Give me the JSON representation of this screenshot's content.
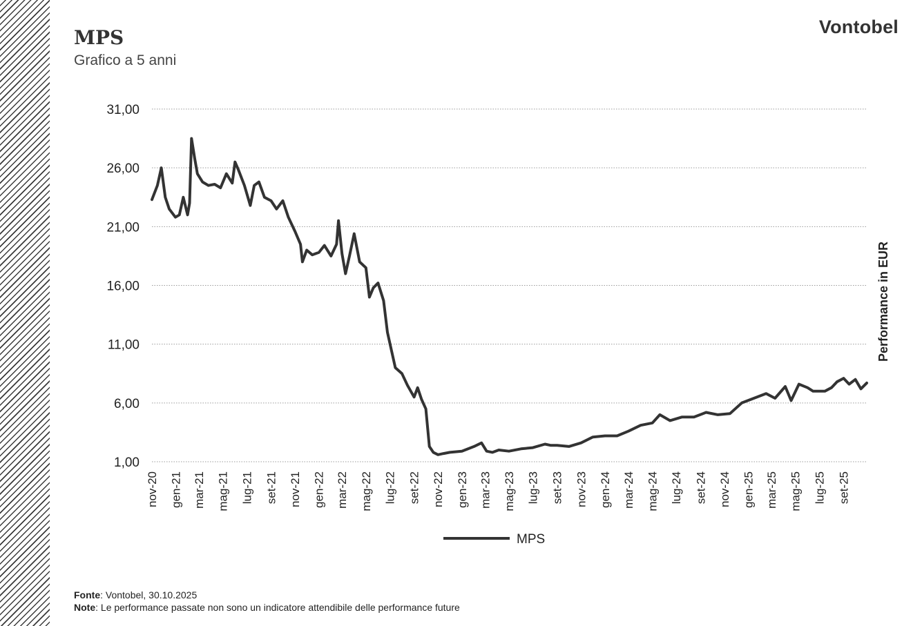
{
  "header": {
    "title": "MPS",
    "subtitle": "Grafico a 5 anni",
    "brand": "Vontobel"
  },
  "footer": {
    "source_label": "Fonte",
    "source_text": ": Vontobel, 30.10.2025",
    "note_label": "Note",
    "note_text": ": Le performance passate non sono un indicatore attendibile delle performance future"
  },
  "colors": {
    "line": "#333333",
    "grid": "#9a9a9a",
    "text": "#222222"
  },
  "chart_data": {
    "type": "line",
    "title": "MPS",
    "subtitle": "Grafico a 5 anni",
    "ylabel": "Performance in EUR",
    "xlabel": "",
    "ylim": [
      1,
      31
    ],
    "yticks": [
      "31,00",
      "26,00",
      "21,00",
      "16,00",
      "11,00",
      "6,00",
      "1,00"
    ],
    "ytick_values": [
      31,
      26,
      21,
      16,
      11,
      6,
      1
    ],
    "xticks": [
      "nov-20",
      "gen-21",
      "mar-21",
      "mag-21",
      "lug-21",
      "set-21",
      "nov-21",
      "gen-22",
      "mar-22",
      "mag-22",
      "lug-22",
      "set-22",
      "nov-22",
      "gen-23",
      "mar-23",
      "mag-23",
      "lug-23",
      "set-23",
      "nov-23",
      "gen-24",
      "mar-24",
      "mag-24",
      "lug-24",
      "set-24",
      "nov-24",
      "gen-25",
      "mar-25",
      "mag-25",
      "lug-25",
      "set-25"
    ],
    "grid": true,
    "legend": "bottom-center",
    "series": [
      {
        "name": "MPS",
        "x": [
          "2020-11-01",
          "2020-11-15",
          "2020-11-25",
          "2020-12-05",
          "2020-12-15",
          "2020-12-31",
          "2021-01-10",
          "2021-01-20",
          "2021-01-31",
          "2021-02-05",
          "2021-02-10",
          "2021-02-18",
          "2021-02-25",
          "2021-03-10",
          "2021-03-25",
          "2021-04-10",
          "2021-04-25",
          "2021-05-10",
          "2021-05-25",
          "2021-06-01",
          "2021-06-10",
          "2021-06-25",
          "2021-07-10",
          "2021-07-20",
          "2021-08-01",
          "2021-08-15",
          "2021-09-01",
          "2021-09-15",
          "2021-10-01",
          "2021-10-15",
          "2021-11-01",
          "2021-11-15",
          "2021-11-20",
          "2021-12-01",
          "2021-12-15",
          "2022-01-01",
          "2022-01-15",
          "2022-02-01",
          "2022-02-15",
          "2022-02-20",
          "2022-03-01",
          "2022-03-10",
          "2022-03-20",
          "2022-04-01",
          "2022-04-15",
          "2022-05-01",
          "2022-05-10",
          "2022-05-20",
          "2022-06-01",
          "2022-06-15",
          "2022-06-25",
          "2022-07-05",
          "2022-07-15",
          "2022-08-01",
          "2022-08-15",
          "2022-09-01",
          "2022-09-10",
          "2022-09-20",
          "2022-10-01",
          "2022-10-10",
          "2022-10-20",
          "2022-11-01",
          "2022-11-15",
          "2022-12-01",
          "2023-01-01",
          "2023-02-01",
          "2023-02-20",
          "2023-03-05",
          "2023-03-20",
          "2023-04-05",
          "2023-05-01",
          "2023-06-01",
          "2023-07-01",
          "2023-08-01",
          "2023-08-15",
          "2023-09-01",
          "2023-10-01",
          "2023-11-01",
          "2023-12-01",
          "2024-01-01",
          "2024-02-01",
          "2024-03-01",
          "2024-04-01",
          "2024-05-01",
          "2024-05-20",
          "2024-06-15",
          "2024-07-15",
          "2024-08-15",
          "2024-09-15",
          "2024-10-15",
          "2024-11-15",
          "2024-12-15",
          "2025-01-15",
          "2025-02-15",
          "2025-03-10",
          "2025-04-05",
          "2025-04-20",
          "2025-05-10",
          "2025-06-01",
          "2025-06-15",
          "2025-07-15",
          "2025-08-01",
          "2025-08-15",
          "2025-09-01",
          "2025-09-15",
          "2025-10-01",
          "2025-10-15",
          "2025-10-30"
        ],
        "y": [
          23.3,
          24.5,
          26.0,
          23.5,
          22.5,
          21.8,
          22.0,
          23.5,
          22.0,
          23.0,
          28.5,
          26.8,
          25.5,
          24.8,
          24.5,
          24.6,
          24.3,
          25.5,
          24.7,
          26.5,
          25.8,
          24.5,
          22.8,
          24.5,
          24.8,
          23.5,
          23.2,
          22.5,
          23.2,
          21.8,
          20.6,
          19.5,
          18.0,
          19.0,
          18.6,
          18.8,
          19.4,
          18.5,
          19.5,
          21.5,
          18.7,
          17.0,
          18.5,
          20.4,
          18.0,
          17.5,
          15.0,
          15.8,
          16.2,
          14.7,
          12.0,
          10.5,
          9.0,
          8.5,
          7.5,
          6.5,
          7.3,
          6.3,
          5.5,
          2.3,
          1.8,
          1.6,
          1.7,
          1.8,
          1.9,
          2.3,
          2.6,
          1.9,
          1.8,
          2.0,
          1.9,
          2.1,
          2.2,
          2.5,
          2.4,
          2.4,
          2.3,
          2.6,
          3.1,
          3.2,
          3.2,
          3.6,
          4.1,
          4.3,
          5.0,
          4.5,
          4.8,
          4.8,
          5.2,
          5.0,
          5.1,
          6.0,
          6.4,
          6.8,
          6.4,
          7.4,
          6.2,
          7.6,
          7.3,
          7.0,
          7.0,
          7.3,
          7.8,
          8.1,
          7.6,
          8.0,
          7.2,
          7.7
        ]
      }
    ]
  }
}
